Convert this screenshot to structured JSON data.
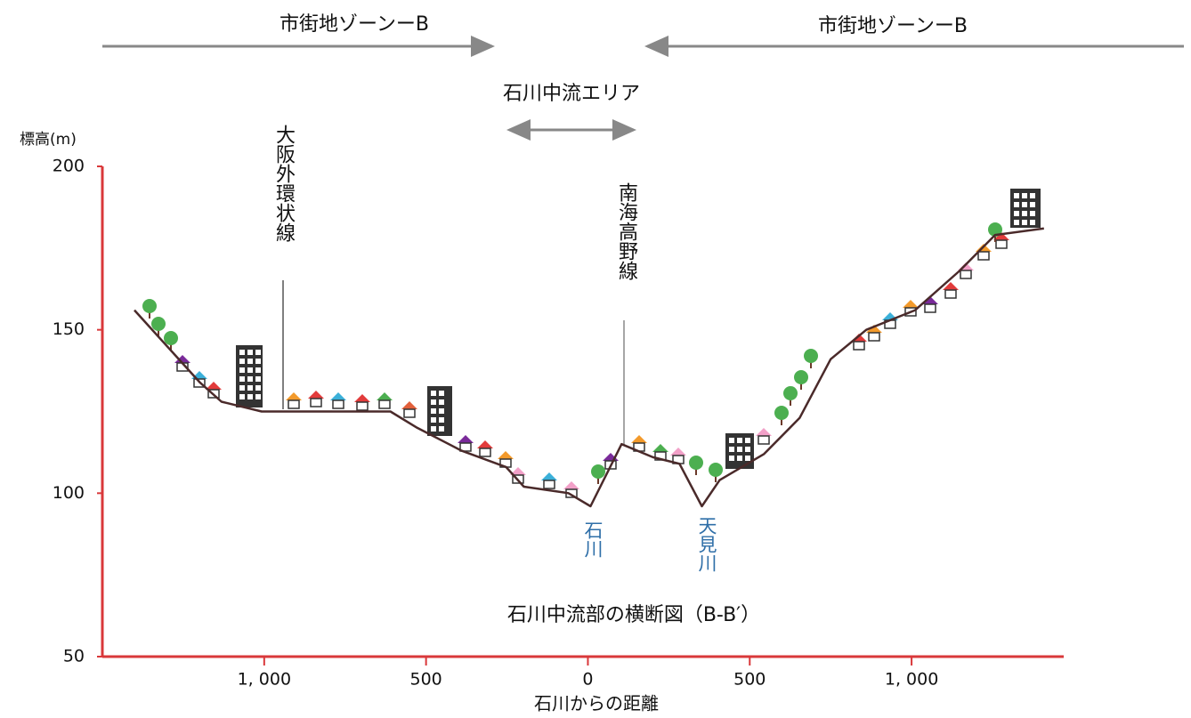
{
  "chart_data": {
    "type": "line",
    "title": "石川中流部の横断図（B-B′）",
    "y_label": "標高(m)",
    "x_label": "石川からの距離",
    "annotations": {
      "zone_left": "市街地ゾーンーB",
      "zone_right": "市街地ゾーンーB",
      "area": "石川中流エリア",
      "road": "大阪外環状線",
      "railway": "南海高野線",
      "river1": "石川",
      "river2": "天見川"
    },
    "x": [
      -1401,
      -1200,
      -1132,
      -1008,
      -610,
      -527,
      -390,
      -253,
      -198,
      -60,
      8,
      104,
      201,
      283,
      352,
      407,
      544,
      654,
      750,
      860,
      1011,
      1148,
      1258,
      1409
    ],
    "values": [
      156,
      134,
      128,
      125,
      125,
      120,
      113,
      108,
      102,
      100,
      96,
      115,
      111,
      109,
      96,
      104,
      112,
      123,
      141,
      150,
      156,
      168,
      179,
      181
    ],
    "color": "#4a2a2a",
    "axis_color": "#d9383a",
    "xlim": [
      -1500,
      1470
    ],
    "xticks": [
      {
        "value": -1000,
        "label": "1, 000"
      },
      {
        "value": -500,
        "label": "500"
      },
      0,
      500,
      {
        "value": 1000,
        "label": "1, 000"
      }
    ],
    "ylim": [
      50,
      200
    ],
    "yticks": [
      50,
      100,
      150,
      200
    ]
  }
}
